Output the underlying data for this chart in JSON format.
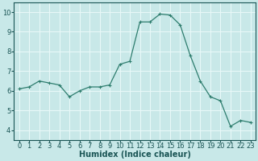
{
  "x": [
    0,
    1,
    2,
    3,
    4,
    5,
    6,
    7,
    8,
    9,
    10,
    11,
    12,
    13,
    14,
    15,
    16,
    17,
    18,
    19,
    20,
    21,
    22,
    23
  ],
  "y": [
    6.1,
    6.2,
    6.5,
    6.4,
    6.3,
    5.7,
    6.0,
    6.2,
    6.2,
    6.3,
    7.35,
    7.5,
    9.5,
    9.5,
    9.9,
    9.85,
    9.35,
    7.8,
    6.5,
    5.7,
    5.5,
    4.2,
    4.5,
    4.4
  ],
  "line_color": "#2e7d6e",
  "marker": "+",
  "marker_size": 3,
  "background_color": "#c8e8e8",
  "grid_color_white": "#e8f8f8",
  "grid_color_pink": "#e8c8c8",
  "xlabel": "Humidex (Indice chaleur)",
  "xlabel_fontsize": 7,
  "tick_fontsize": 6,
  "xlim": [
    -0.5,
    23.5
  ],
  "ylim": [
    3.5,
    10.5
  ],
  "yticks": [
    4,
    5,
    6,
    7,
    8,
    9,
    10
  ],
  "xticks": [
    0,
    1,
    2,
    3,
    4,
    5,
    6,
    7,
    8,
    9,
    10,
    11,
    12,
    13,
    14,
    15,
    16,
    17,
    18,
    19,
    20,
    21,
    22,
    23
  ],
  "tick_color": "#1a5555",
  "spine_color": "#1a5555"
}
